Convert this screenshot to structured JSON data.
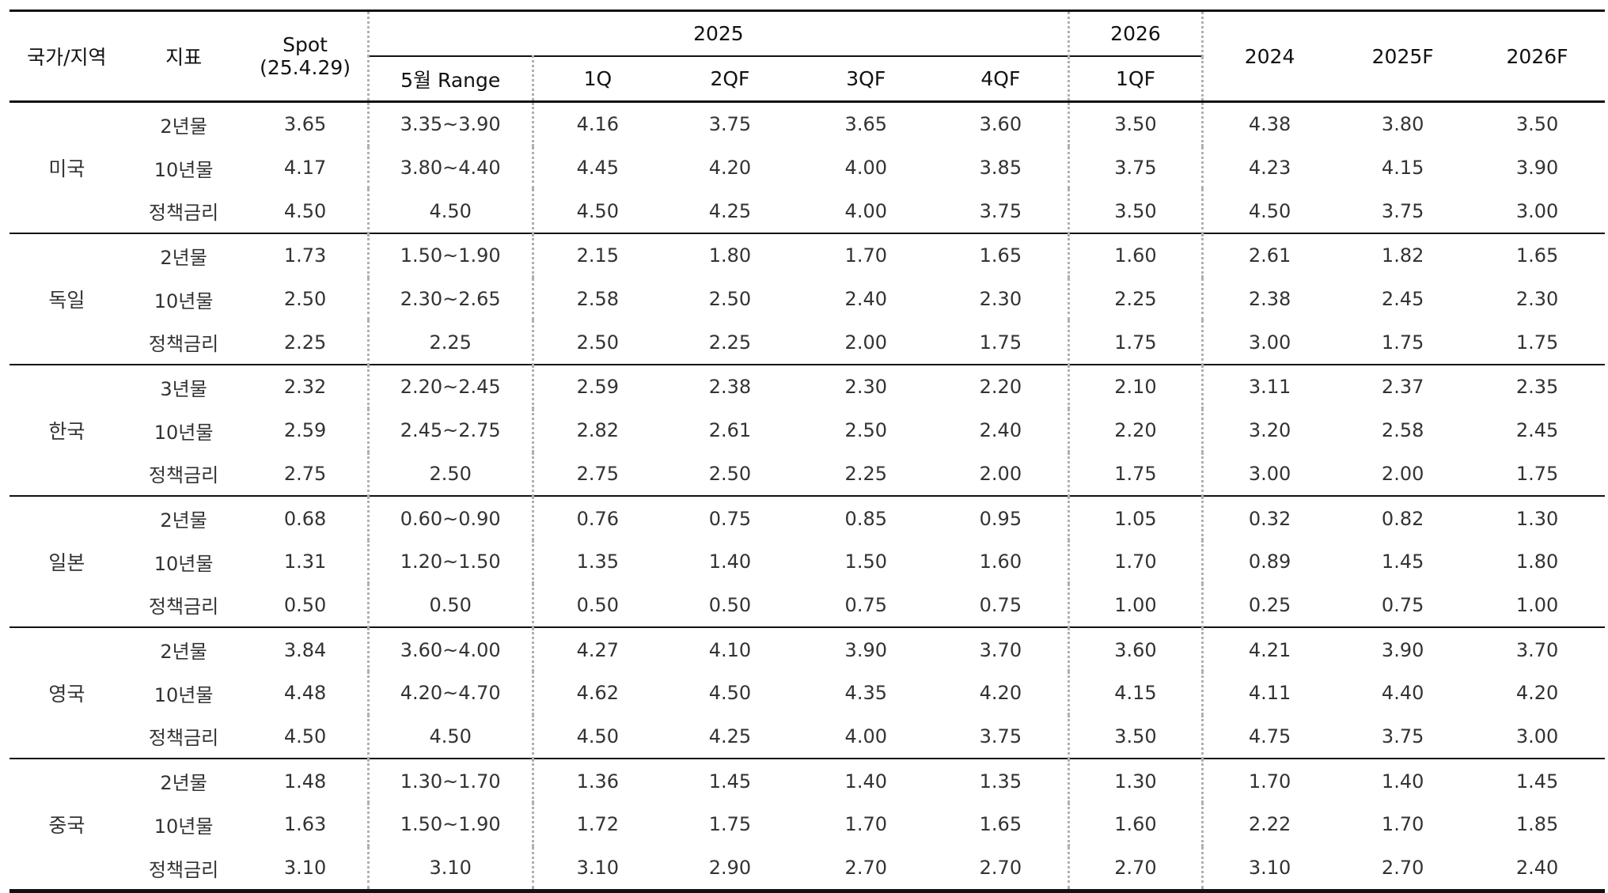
{
  "header": {
    "country": "국가/지역",
    "indicator": "지표",
    "spot_line1": "Spot",
    "spot_line2": "(25.4.29)",
    "year_2025": "2025",
    "year_2026": "2026",
    "may_range": "5월 Range",
    "q1": "1Q",
    "q2f": "2QF",
    "q3f": "3QF",
    "q4f": "4QF",
    "q1f_2026": "1QF",
    "y2024": "2024",
    "y2025f": "2025F",
    "y2026f": "2026F"
  },
  "groups": [
    {
      "country": "미국",
      "rows": [
        {
          "indicator": "2년물",
          "spot": "3.65",
          "range": "3.35~3.90",
          "q1": "4.16",
          "q2f": "3.75",
          "q3f": "3.65",
          "q4f": "3.60",
          "q1f26": "3.50",
          "y2024": "4.38",
          "y2025f": "3.80",
          "y2026f": "3.50"
        },
        {
          "indicator": "10년물",
          "spot": "4.17",
          "range": "3.80~4.40",
          "q1": "4.45",
          "q2f": "4.20",
          "q3f": "4.00",
          "q4f": "3.85",
          "q1f26": "3.75",
          "y2024": "4.23",
          "y2025f": "4.15",
          "y2026f": "3.90"
        },
        {
          "indicator": "정책금리",
          "spot": "4.50",
          "range": "4.50",
          "q1": "4.50",
          "q2f": "4.25",
          "q3f": "4.00",
          "q4f": "3.75",
          "q1f26": "3.50",
          "y2024": "4.50",
          "y2025f": "3.75",
          "y2026f": "3.00"
        }
      ]
    },
    {
      "country": "독일",
      "rows": [
        {
          "indicator": "2년물",
          "spot": "1.73",
          "range": "1.50~1.90",
          "q1": "2.15",
          "q2f": "1.80",
          "q3f": "1.70",
          "q4f": "1.65",
          "q1f26": "1.60",
          "y2024": "2.61",
          "y2025f": "1.82",
          "y2026f": "1.65"
        },
        {
          "indicator": "10년물",
          "spot": "2.50",
          "range": "2.30~2.65",
          "q1": "2.58",
          "q2f": "2.50",
          "q3f": "2.40",
          "q4f": "2.30",
          "q1f26": "2.25",
          "y2024": "2.38",
          "y2025f": "2.45",
          "y2026f": "2.30"
        },
        {
          "indicator": "정책금리",
          "spot": "2.25",
          "range": "2.25",
          "q1": "2.50",
          "q2f": "2.25",
          "q3f": "2.00",
          "q4f": "1.75",
          "q1f26": "1.75",
          "y2024": "3.00",
          "y2025f": "1.75",
          "y2026f": "1.75"
        }
      ]
    },
    {
      "country": "한국",
      "rows": [
        {
          "indicator": "3년물",
          "spot": "2.32",
          "range": "2.20~2.45",
          "q1": "2.59",
          "q2f": "2.38",
          "q3f": "2.30",
          "q4f": "2.20",
          "q1f26": "2.10",
          "y2024": "3.11",
          "y2025f": "2.37",
          "y2026f": "2.35"
        },
        {
          "indicator": "10년물",
          "spot": "2.59",
          "range": "2.45~2.75",
          "q1": "2.82",
          "q2f": "2.61",
          "q3f": "2.50",
          "q4f": "2.40",
          "q1f26": "2.20",
          "y2024": "3.20",
          "y2025f": "2.58",
          "y2026f": "2.45"
        },
        {
          "indicator": "정책금리",
          "spot": "2.75",
          "range": "2.50",
          "q1": "2.75",
          "q2f": "2.50",
          "q3f": "2.25",
          "q4f": "2.00",
          "q1f26": "1.75",
          "y2024": "3.00",
          "y2025f": "2.00",
          "y2026f": "1.75"
        }
      ]
    },
    {
      "country": "일본",
      "rows": [
        {
          "indicator": "2년물",
          "spot": "0.68",
          "range": "0.60~0.90",
          "q1": "0.76",
          "q2f": "0.75",
          "q3f": "0.85",
          "q4f": "0.95",
          "q1f26": "1.05",
          "y2024": "0.32",
          "y2025f": "0.82",
          "y2026f": "1.30"
        },
        {
          "indicator": "10년물",
          "spot": "1.31",
          "range": "1.20~1.50",
          "q1": "1.35",
          "q2f": "1.40",
          "q3f": "1.50",
          "q4f": "1.60",
          "q1f26": "1.70",
          "y2024": "0.89",
          "y2025f": "1.45",
          "y2026f": "1.80"
        },
        {
          "indicator": "정책금리",
          "spot": "0.50",
          "range": "0.50",
          "q1": "0.50",
          "q2f": "0.50",
          "q3f": "0.75",
          "q4f": "0.75",
          "q1f26": "1.00",
          "y2024": "0.25",
          "y2025f": "0.75",
          "y2026f": "1.00"
        }
      ]
    },
    {
      "country": "영국",
      "rows": [
        {
          "indicator": "2년물",
          "spot": "3.84",
          "range": "3.60~4.00",
          "q1": "4.27",
          "q2f": "4.10",
          "q3f": "3.90",
          "q4f": "3.70",
          "q1f26": "3.60",
          "y2024": "4.21",
          "y2025f": "3.90",
          "y2026f": "3.70"
        },
        {
          "indicator": "10년물",
          "spot": "4.48",
          "range": "4.20~4.70",
          "q1": "4.62",
          "q2f": "4.50",
          "q3f": "4.35",
          "q4f": "4.20",
          "q1f26": "4.15",
          "y2024": "4.11",
          "y2025f": "4.40",
          "y2026f": "4.20"
        },
        {
          "indicator": "정책금리",
          "spot": "4.50",
          "range": "4.50",
          "q1": "4.50",
          "q2f": "4.25",
          "q3f": "4.00",
          "q4f": "3.75",
          "q1f26": "3.50",
          "y2024": "4.75",
          "y2025f": "3.75",
          "y2026f": "3.00"
        }
      ]
    },
    {
      "country": "중국",
      "rows": [
        {
          "indicator": "2년물",
          "spot": "1.48",
          "range": "1.30~1.70",
          "q1": "1.36",
          "q2f": "1.45",
          "q3f": "1.40",
          "q4f": "1.35",
          "q1f26": "1.30",
          "y2024": "1.70",
          "y2025f": "1.40",
          "y2026f": "1.45"
        },
        {
          "indicator": "10년물",
          "spot": "1.63",
          "range": "1.50~1.90",
          "q1": "1.72",
          "q2f": "1.75",
          "q3f": "1.70",
          "q4f": "1.65",
          "q1f26": "1.60",
          "y2024": "2.22",
          "y2025f": "1.70",
          "y2026f": "1.85"
        },
        {
          "indicator": "정책금리",
          "spot": "3.10",
          "range": "3.10",
          "q1": "3.10",
          "q2f": "2.90",
          "q3f": "2.70",
          "q4f": "2.70",
          "q1f26": "2.70",
          "y2024": "3.10",
          "y2025f": "2.70",
          "y2026f": "2.40"
        }
      ]
    }
  ]
}
